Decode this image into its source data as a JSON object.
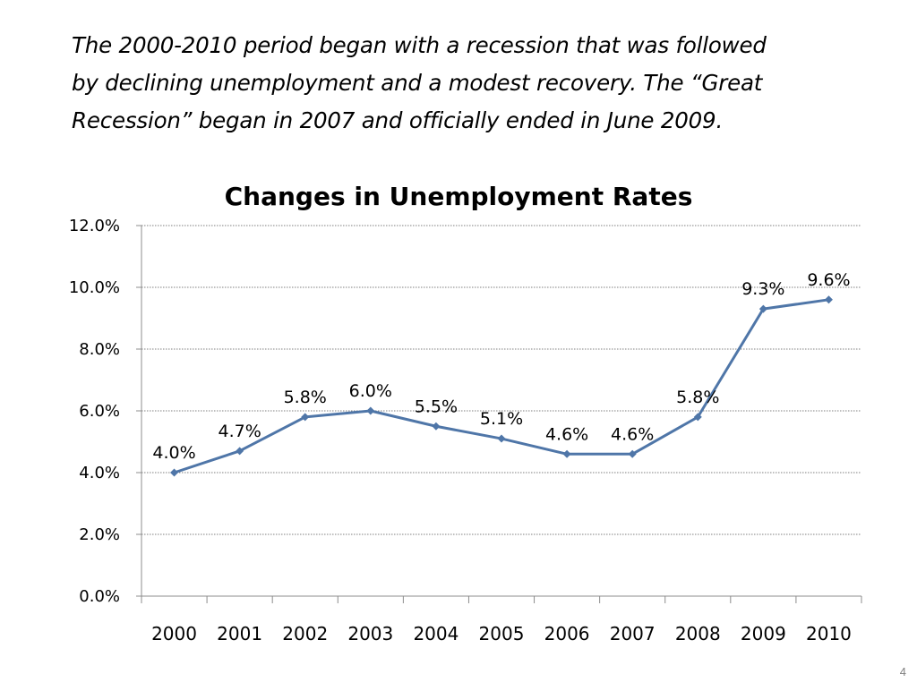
{
  "intro": {
    "line1": "The 2000-2010 period began with a recession that was followed",
    "line2": "by declining unemployment and a modest recovery.  The “Great",
    "line3": "Recession” began in 2007 and officially ended in June 2009."
  },
  "page_number": "4",
  "colors": {
    "series": "#4f76a8",
    "gridline": "#7f7f7f",
    "axis": "#8c8c8c"
  },
  "chart_data": {
    "type": "line",
    "title": "Changes in Unemployment Rates",
    "xlabel": "",
    "ylabel": "",
    "categories": [
      "2000",
      "2001",
      "2002",
      "2003",
      "2004",
      "2005",
      "2006",
      "2007",
      "2008",
      "2009",
      "2010"
    ],
    "series": [
      {
        "values": [
          4.0,
          4.7,
          5.8,
          6.0,
          5.5,
          5.1,
          4.6,
          4.6,
          5.8,
          9.3,
          9.6
        ],
        "data_labels": [
          "4.0%",
          "4.7%",
          "5.8%",
          "6.0%",
          "5.5%",
          "5.1%",
          "4.6%",
          "4.6%",
          "5.8%",
          "9.3%",
          "9.6%"
        ]
      }
    ],
    "ylim": [
      0,
      12
    ],
    "y_ticks": [
      0,
      2,
      4,
      6,
      8,
      10,
      12
    ],
    "y_tick_labels": [
      "0.0%",
      "2.0%",
      "4.0%",
      "6.0%",
      "8.0%",
      "10.0%",
      "12.0%"
    ],
    "grid": "horizontal dotted",
    "legend": "none",
    "marker": "diamond"
  }
}
